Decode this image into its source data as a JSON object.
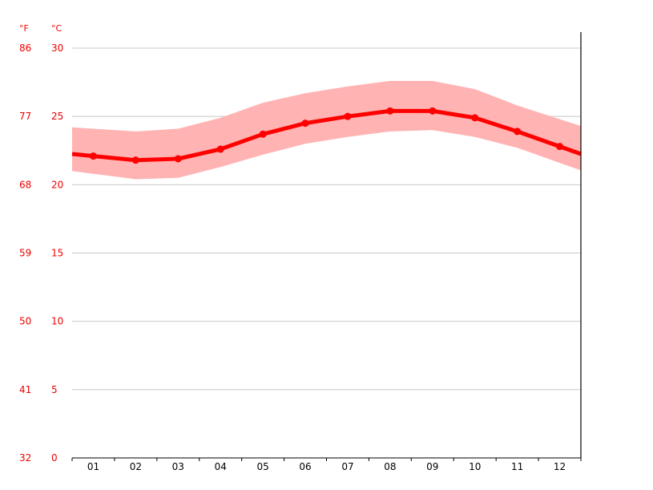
{
  "chart_data": {
    "type": "line",
    "categories": [
      "01",
      "02",
      "03",
      "04",
      "05",
      "06",
      "07",
      "08",
      "09",
      "10",
      "11",
      "12"
    ],
    "series": [
      {
        "values": [
          22.1,
          21.8,
          21.9,
          22.6,
          23.7,
          24.5,
          25.0,
          25.4,
          25.4,
          24.9,
          23.9,
          22.8
        ]
      }
    ],
    "range_low": [
      20.8,
      20.4,
      20.5,
      21.3,
      22.2,
      23.0,
      23.5,
      23.9,
      24.0,
      23.5,
      22.7,
      21.6
    ],
    "range_high": [
      24.1,
      23.9,
      24.1,
      24.9,
      26.0,
      26.7,
      27.2,
      27.6,
      27.6,
      27.0,
      25.8,
      24.8
    ],
    "y_unit_left": "°F",
    "y_unit_right": "°C",
    "y_ticks_c": [
      0,
      5,
      10,
      15,
      20,
      25,
      30
    ],
    "y_ticks_f": [
      32,
      41,
      50,
      59,
      68,
      77,
      86
    ],
    "ylim": [
      0,
      30
    ],
    "grid": true,
    "colors": {
      "line": "#ff0000",
      "band": "#ffb3b3",
      "grid": "#c8c8c8",
      "axis_text": "#ee0000"
    }
  }
}
